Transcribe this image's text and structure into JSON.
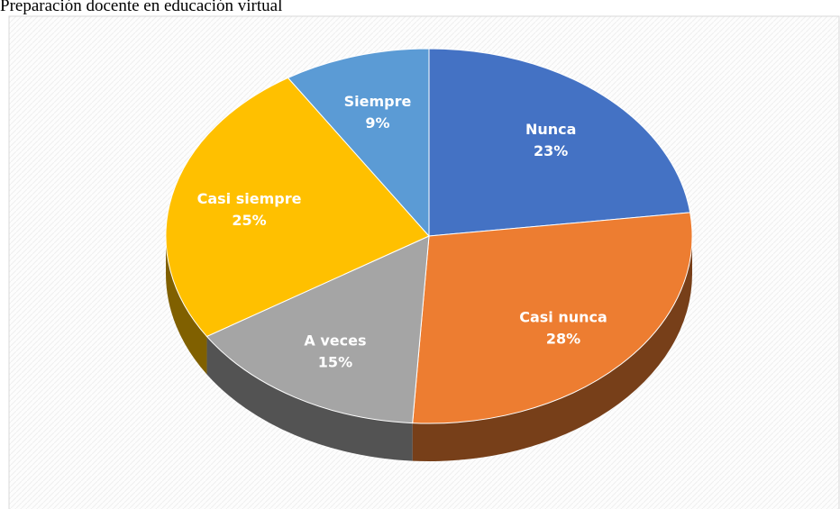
{
  "chart_data": {
    "type": "pie3d",
    "title": "Preparación docente en educación virtual",
    "categories": [
      "Nunca",
      "Casi nunca",
      "A veces",
      "Casi siempre",
      "Siempre"
    ],
    "values": [
      23,
      28,
      15,
      25,
      9
    ],
    "value_labels": [
      "23%",
      "28%",
      "15%",
      "25%",
      "9%"
    ],
    "colors": [
      "#4472c4",
      "#ed7d31",
      "#a5a5a5",
      "#ffc000",
      "#5b9bd5"
    ]
  }
}
